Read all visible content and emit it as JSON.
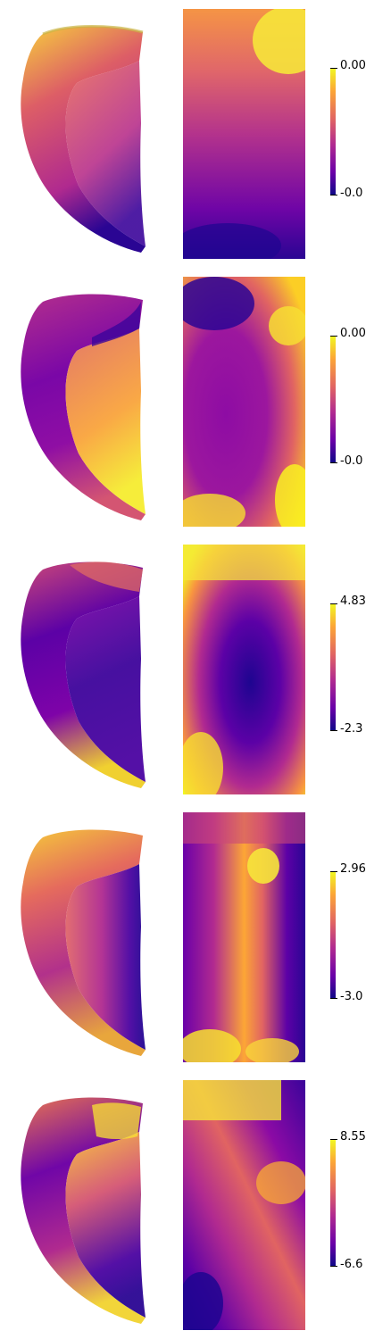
{
  "panels": [
    {
      "cbar_max": "0.00",
      "cbar_min": "-0.0"
    },
    {
      "cbar_max": "0.00",
      "cbar_min": "-0.0"
    },
    {
      "cbar_max": "4.83",
      "cbar_min": "-2.3"
    },
    {
      "cbar_max": "2.96",
      "cbar_min": "-3.0"
    },
    {
      "cbar_max": "8.55",
      "cbar_min": "-6.6"
    }
  ],
  "colormap": [
    "#0d0887",
    "#6a00a8",
    "#b12a90",
    "#e16462",
    "#fca636",
    "#f0f921"
  ]
}
